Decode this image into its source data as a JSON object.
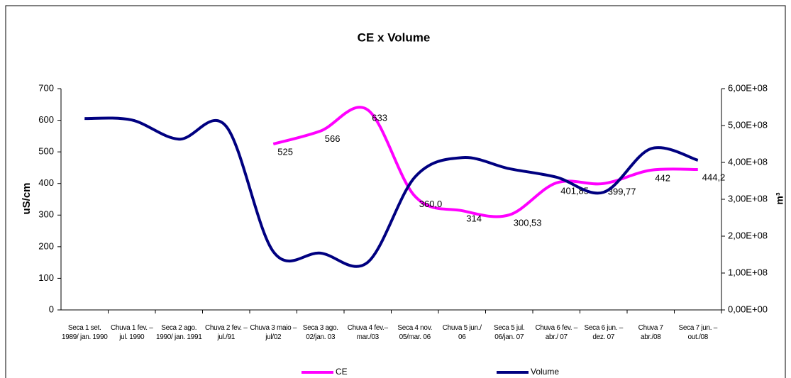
{
  "chart_data": {
    "type": "line",
    "title": "CE x Volume",
    "y_label": "uS/cm",
    "y2_label": "m³",
    "categories": [
      "Seca 1 set. 1989/ jan. 1990",
      "Chuva 1 fev. – jul. 1990",
      "Seca 2 ago. 1990/ jan. 1991",
      "Chuva 2 fev. – jul./91",
      "Chuva 3 maio – jul/02",
      "Seca 3 ago. 02/jan. 03",
      "Chuva 4 fev.– mar./03",
      "Seca 4 nov. 05/mar. 06",
      "Chuva 5 jun./ 06",
      "Seca 5 jul. 06/jan. 07",
      "Chuva 6 fev. – abr./ 07",
      "Seca 6 jun. – dez. 07",
      "Chuva 7 abr./08",
      "Seca 7 jun. – out./08"
    ],
    "series": [
      {
        "name": "CE",
        "color": "#ff00ff",
        "values": [
          null,
          null,
          null,
          null,
          525,
          566,
          633,
          360,
          314,
          300.53,
          401.85,
          399.77,
          442,
          444.2
        ],
        "value_labels": [
          null,
          null,
          null,
          null,
          "525",
          "566",
          "633",
          "360,0",
          "314",
          "300,53",
          "401,85",
          "399,77",
          "442",
          "444,2"
        ]
      },
      {
        "name": "Volume",
        "color": "#000080",
        "axis": "y2",
        "values": [
          519000000,
          515000000,
          463000000,
          498000000,
          158000000,
          154000000,
          129000000,
          360000000,
          413000000,
          383000000,
          360000000,
          319000000,
          437000000,
          406000000
        ]
      }
    ],
    "ylim": [
      0,
      700
    ],
    "yticks": [
      0,
      100,
      200,
      300,
      400,
      500,
      600,
      700
    ],
    "y2lim": [
      0,
      600000000
    ],
    "y2ticks": [
      {
        "value": 0,
        "label": "0,00E+00"
      },
      {
        "value": 100000000,
        "label": "1,00E+08"
      },
      {
        "value": 200000000,
        "label": "2,00E+08"
      },
      {
        "value": 300000000,
        "label": "3,00E+08"
      },
      {
        "value": 400000000,
        "label": "4,00E+08"
      },
      {
        "value": 500000000,
        "label": "5,00E+08"
      },
      {
        "value": 600000000,
        "label": "6,00E+08"
      }
    ],
    "grid": false,
    "legend": "bottom"
  }
}
